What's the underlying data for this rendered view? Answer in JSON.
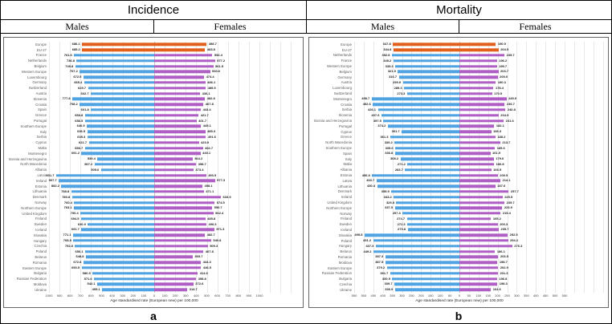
{
  "colors": {
    "male_bar": "#4FA3E3",
    "female_bar": "#AF5FC4",
    "highlight_bar": "#E1601C",
    "gridline": "#e8e8e8",
    "center_line": "#c4c4c4",
    "country_label": "#595959",
    "value_label": "#1a1a1a"
  },
  "chart_data": [
    {
      "id": "a",
      "type": "bar",
      "title": "Incidence",
      "males_label": "Males",
      "females_label": "Females",
      "panel_label": "a",
      "xlabel": "Age standardised rate (European new) per 100,000",
      "axis_max": 1000,
      "tick_step": 100,
      "legend_position": "header",
      "grid": true,
      "highlight_categories": [
        "Europe",
        "EU-27"
      ],
      "categories": [
        "Europe",
        "EU-27",
        "France",
        "Netherlands",
        "Belgium",
        "Western Europe",
        "Luxembourg",
        "Germany",
        "Switzerland",
        "Austria",
        "Slovenia",
        "Croatia",
        "Spain",
        "Greece",
        "Portugal",
        "Southern Europe",
        "Italy",
        "Serbia",
        "Cyprus",
        "Malta",
        "Montenegro",
        "Bosnia and Herzegovina",
        "North Macedonia",
        "Albania",
        "Latvia",
        "Ireland",
        "Estonia",
        "Lithuania",
        "Denmark",
        "Norway",
        "Northern Europe",
        "United Kingdom",
        "Finland",
        "Sweden",
        "Iceland",
        "Slovakia",
        "Hungary",
        "Czechia",
        "Poland",
        "Belarus",
        "Romania",
        "Eastern Europe",
        "Bulgaria",
        "Russian Federation",
        "Moldova",
        "Ukraine"
      ],
      "series": [
        {
          "name": "Males",
          "values": [
            686.1,
            685.2,
            761.6,
            736.8,
            749.8,
            707.2,
            672.5,
            665.4,
            629.7,
            602.7,
            777.8,
            708.2,
            601.8,
            658.8,
            658.5,
            640.5,
            636.5,
            635.3,
            621.7,
            658.7,
            691.2,
            539.4,
            567.2,
            505.6,
            931.7,
            907.7,
            882.2,
            788.8,
            780.8,
            760.4,
            763.1,
            700.4,
            694.5,
            630.9,
            691.7,
            771.1,
            768.8,
            752.8,
            656.1,
            648.8,
            672.8,
            690.5,
            586.5,
            571.6,
            542.1,
            495.1
          ]
        },
        {
          "name": "Females",
          "values": [
            498.7,
            483.8,
            552.4,
            577.2,
            561.5,
            530.6,
            474.4,
            486.1,
            489.5,
            436.1,
            482.8,
            467.8,
            443.4,
            421.7,
            401.7,
            445.1,
            485.3,
            491.6,
            423.9,
            462.7,
            440.1,
            364.2,
            398.7,
            373.4,
            493.9,
            577.3,
            458.1,
            471.1,
            633.9,
            574.5,
            550.7,
            562.4,
            485.8,
            496.3,
            571.3,
            482.7,
            540.8,
            509.3,
            467.8,
            365.7,
            444.3,
            446.5,
            414.6,
            398.8,
            372.6,
            314.7
          ]
        }
      ]
    },
    {
      "id": "b",
      "type": "bar",
      "title": "Mortality",
      "males_label": "Males",
      "females_label": "Females",
      "panel_label": "b",
      "xlabel": "Age standardised rate (European new) per 100,000",
      "axis_max": 550,
      "tick_step": 50,
      "legend_position": "header",
      "grid": true,
      "highlight_categories": [
        "Europe",
        "EU-27"
      ],
      "categories": [
        "Europe",
        "EU-27",
        "Netherlands",
        "France",
        "Western Europe",
        "Belgium",
        "Germany",
        "Austria",
        "Luxembourg",
        "Switzerland",
        "Montenegro",
        "Croatia",
        "Serbia",
        "Slovenia",
        "Bosnia and Herzegovina",
        "Portugal",
        "Cyprus",
        "Greece",
        "North Macedonia",
        "Southern Europe",
        "Spain",
        "Italy",
        "Malta",
        "Albania",
        "Estonia",
        "Latvia",
        "Lithuania",
        "Denmark",
        "Ireland",
        "United Kingdom",
        "Northern Europe",
        "Norway",
        "Finland",
        "Sweden",
        "Iceland",
        "Slovakia",
        "Poland",
        "Hungary",
        "Belarus",
        "Romania",
        "Moldova",
        "Eastern Europe",
        "Russian Federation",
        "Bulgaria",
        "Czechia",
        "Ukraine"
      ],
      "series": [
        {
          "name": "Males",
          "values": [
            347.8,
            344.8,
            352.8,
            345.2,
            335.3,
            321.9,
            316.7,
            295.9,
            289.3,
            273.3,
            458.7,
            452.6,
            426.1,
            407.6,
            397.5,
            374.2,
            301.7,
            361.3,
            339.2,
            335.6,
            336.8,
            308.2,
            271.2,
            283.7,
            456.8,
            433.7,
            430.4,
            355.9,
            343.2,
            329.8,
            337.5,
            297.3,
            274.7,
            272.3,
            270.8,
            495.8,
            451.2,
            437.3,
            449.2,
            387.3,
            387.5,
            379.2,
            361.7,
            350.9,
            339.7,
            336.9
          ]
        },
        {
          "name": "Females",
          "values": [
            190.5,
            204.5,
            235.7,
            196.2,
            195.7,
            203.7,
            200.0,
            190.3,
            178.4,
            170.5,
            245.9,
            236.7,
            240.8,
            204.9,
            231.6,
            182.1,
            166.3,
            188.2,
            213.7,
            185.6,
            161.9,
            179.6,
            180.8,
            166.5,
            200.5,
            214.1,
            187.6,
            257.7,
            225.5,
            235.7,
            223.9,
            215.4,
            165.2,
            200.3,
            205.7,
            252.5,
            254.2,
            276.3,
            186.1,
            203.5,
            198.7,
            202.9,
            201.3,
            196.8,
            198.3,
            164.6
          ]
        }
      ]
    }
  ]
}
